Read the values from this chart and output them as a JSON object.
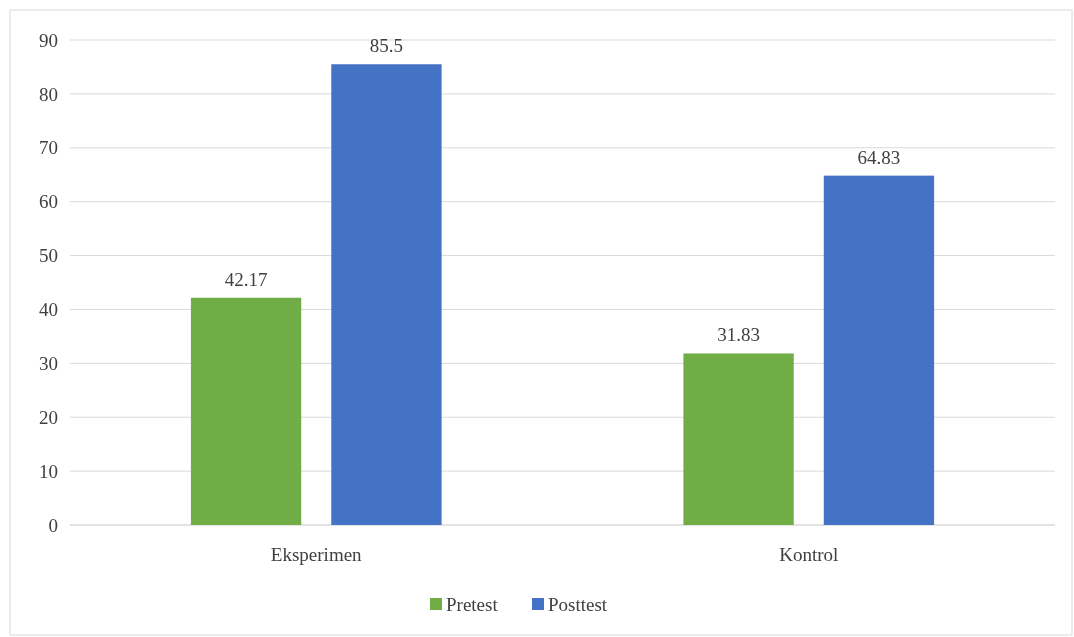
{
  "chart_data": {
    "type": "bar",
    "categories": [
      "Eksperimen",
      "Kontrol"
    ],
    "series": [
      {
        "name": "Pretest",
        "color": "#70ad47",
        "values": [
          42.17,
          31.83
        ]
      },
      {
        "name": "Posttest",
        "color": "#4472c4",
        "values": [
          85.5,
          64.83
        ]
      }
    ],
    "ylim": [
      0,
      90
    ],
    "yticks": [
      0,
      10,
      20,
      30,
      40,
      50,
      60,
      70,
      80,
      90
    ],
    "grid": "y",
    "legend": "bottom",
    "data_labels": true
  }
}
